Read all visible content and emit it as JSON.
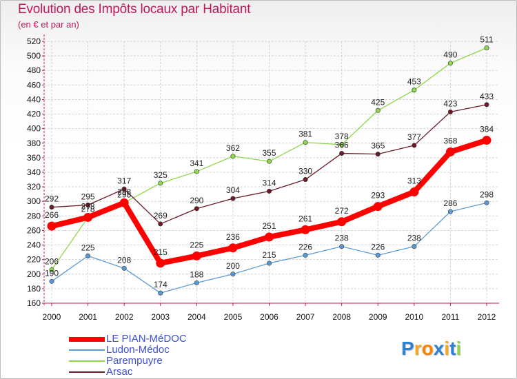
{
  "title": "Evolution des Impôts locaux par Habitant",
  "subtitle": "(en € et par an)",
  "chart_data": {
    "type": "line",
    "x": [
      "2000",
      "2001",
      "2002",
      "2003",
      "2004",
      "2005",
      "2006",
      "2007",
      "2008",
      "2009",
      "2010",
      "2011",
      "2012"
    ],
    "ylim": [
      160,
      520
    ],
    "yticks": [
      160,
      180,
      200,
      220,
      240,
      260,
      280,
      300,
      320,
      340,
      360,
      380,
      400,
      420,
      440,
      460,
      480,
      500,
      520
    ],
    "grid": true,
    "series": [
      {
        "name": "LE PIAN-MéDOC",
        "color": "#ff0000",
        "values": [
          266,
          278,
          298,
          215,
          225,
          236,
          251,
          261,
          272,
          293,
          313,
          368,
          384
        ]
      },
      {
        "name": "Ludon-Médoc",
        "color": "#5b9bd5",
        "values": [
          190,
          225,
          208,
          174,
          188,
          200,
          215,
          226,
          238,
          226,
          238,
          286,
          298
        ]
      },
      {
        "name": "Parempuyre",
        "color": "#8ed64a",
        "values": [
          206,
          278,
          298,
          325,
          341,
          362,
          355,
          381,
          378,
          425,
          453,
          490,
          511
        ]
      },
      {
        "name": "Arsac",
        "color": "#6b1a26",
        "values": [
          292,
          295,
          317,
          269,
          290,
          304,
          314,
          330,
          366,
          365,
          377,
          423,
          433
        ]
      }
    ]
  },
  "legend": [
    {
      "label": "LE PIAN-MéDOC",
      "color": "#ff0000"
    },
    {
      "label": "Ludon-Médoc",
      "color": "#5b9bd5"
    },
    {
      "label": "Parempuyre",
      "color": "#8ed64a"
    },
    {
      "label": "Arsac",
      "color": "#6b1a26"
    }
  ],
  "logo": {
    "letters": [
      "P",
      "r",
      "o",
      "x",
      "i",
      "t",
      "i"
    ],
    "colors": [
      "#2f7fd3",
      "#f5a623",
      "#ff7f00",
      "#2f7fd3",
      "#f5a623",
      "#2f7fd3",
      "#8ed64a"
    ]
  }
}
